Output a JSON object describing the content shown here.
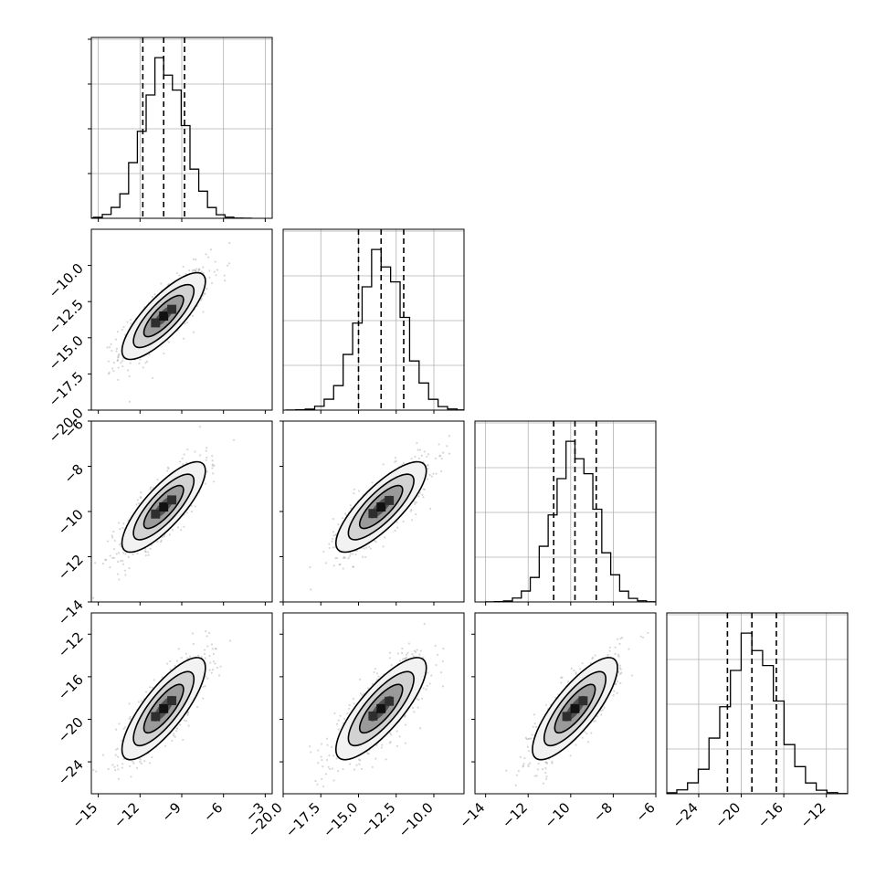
{
  "chart_data": {
    "type": "corner",
    "n_params": 4,
    "x_ranges": [
      [
        -15.5,
        -2.5
      ],
      [
        -20,
        -8
      ],
      [
        -14.5,
        -6
      ],
      [
        -27,
        -10
      ]
    ],
    "y_ranges": [
      null,
      [
        -20,
        -7.5
      ],
      [
        -14,
        -6
      ],
      [
        -27,
        -10
      ]
    ],
    "x_ticks": [
      {
        "values": [
          -15,
          -12,
          -9,
          -6,
          -3
        ],
        "labels": [
          "−15",
          "−12",
          "−9",
          "−6",
          "−3"
        ]
      },
      {
        "values": [
          -20,
          -17.5,
          -15,
          -12.5,
          -10
        ],
        "labels": [
          "−20.0",
          "−17.5",
          "−15.0",
          "−12.5",
          "−10.0"
        ]
      },
      {
        "values": [
          -14,
          -12,
          -10,
          -8,
          -6
        ],
        "labels": [
          "−14",
          "−12",
          "−10",
          "−8",
          "−6"
        ]
      },
      {
        "values": [
          -24,
          -20,
          -16,
          -12
        ],
        "labels": [
          "−24",
          "−20",
          "−16",
          "−12"
        ]
      }
    ],
    "y_ticks": [
      null,
      {
        "values": [
          -10,
          -12.5,
          -15,
          -17.5,
          -20
        ],
        "labels": [
          "−10.0",
          "−12.5",
          "−15.0",
          "−17.5",
          "−20.0"
        ]
      },
      {
        "values": [
          -6,
          -8,
          -10,
          -12,
          -14
        ],
        "labels": [
          "−6",
          "−8",
          "−10",
          "−12",
          "−14"
        ]
      },
      {
        "values": [
          -12,
          -16,
          -20,
          -24
        ],
        "labels": [
          "−12",
          "−16",
          "−20",
          "−24"
        ]
      }
    ],
    "params": [
      {
        "mean": -10.3,
        "sd": 1.5,
        "quantiles": [
          -11.8,
          -10.3,
          -8.8
        ]
      },
      {
        "mean": -13.5,
        "sd": 1.5,
        "quantiles": [
          -15.0,
          -13.5,
          -12.0
        ]
      },
      {
        "mean": -9.8,
        "sd": 1.0,
        "quantiles": [
          -10.8,
          -9.8,
          -8.8
        ]
      },
      {
        "mean": -19.0,
        "sd": 2.4,
        "quantiles": [
          -21.3,
          -19.0,
          -16.7
        ]
      }
    ],
    "correlation": 0.8,
    "n_scatter": 700,
    "grid": true,
    "colors": {
      "ink": "#000000",
      "grid": "#b0b0b0",
      "scatter": "#8c8c8c"
    }
  }
}
